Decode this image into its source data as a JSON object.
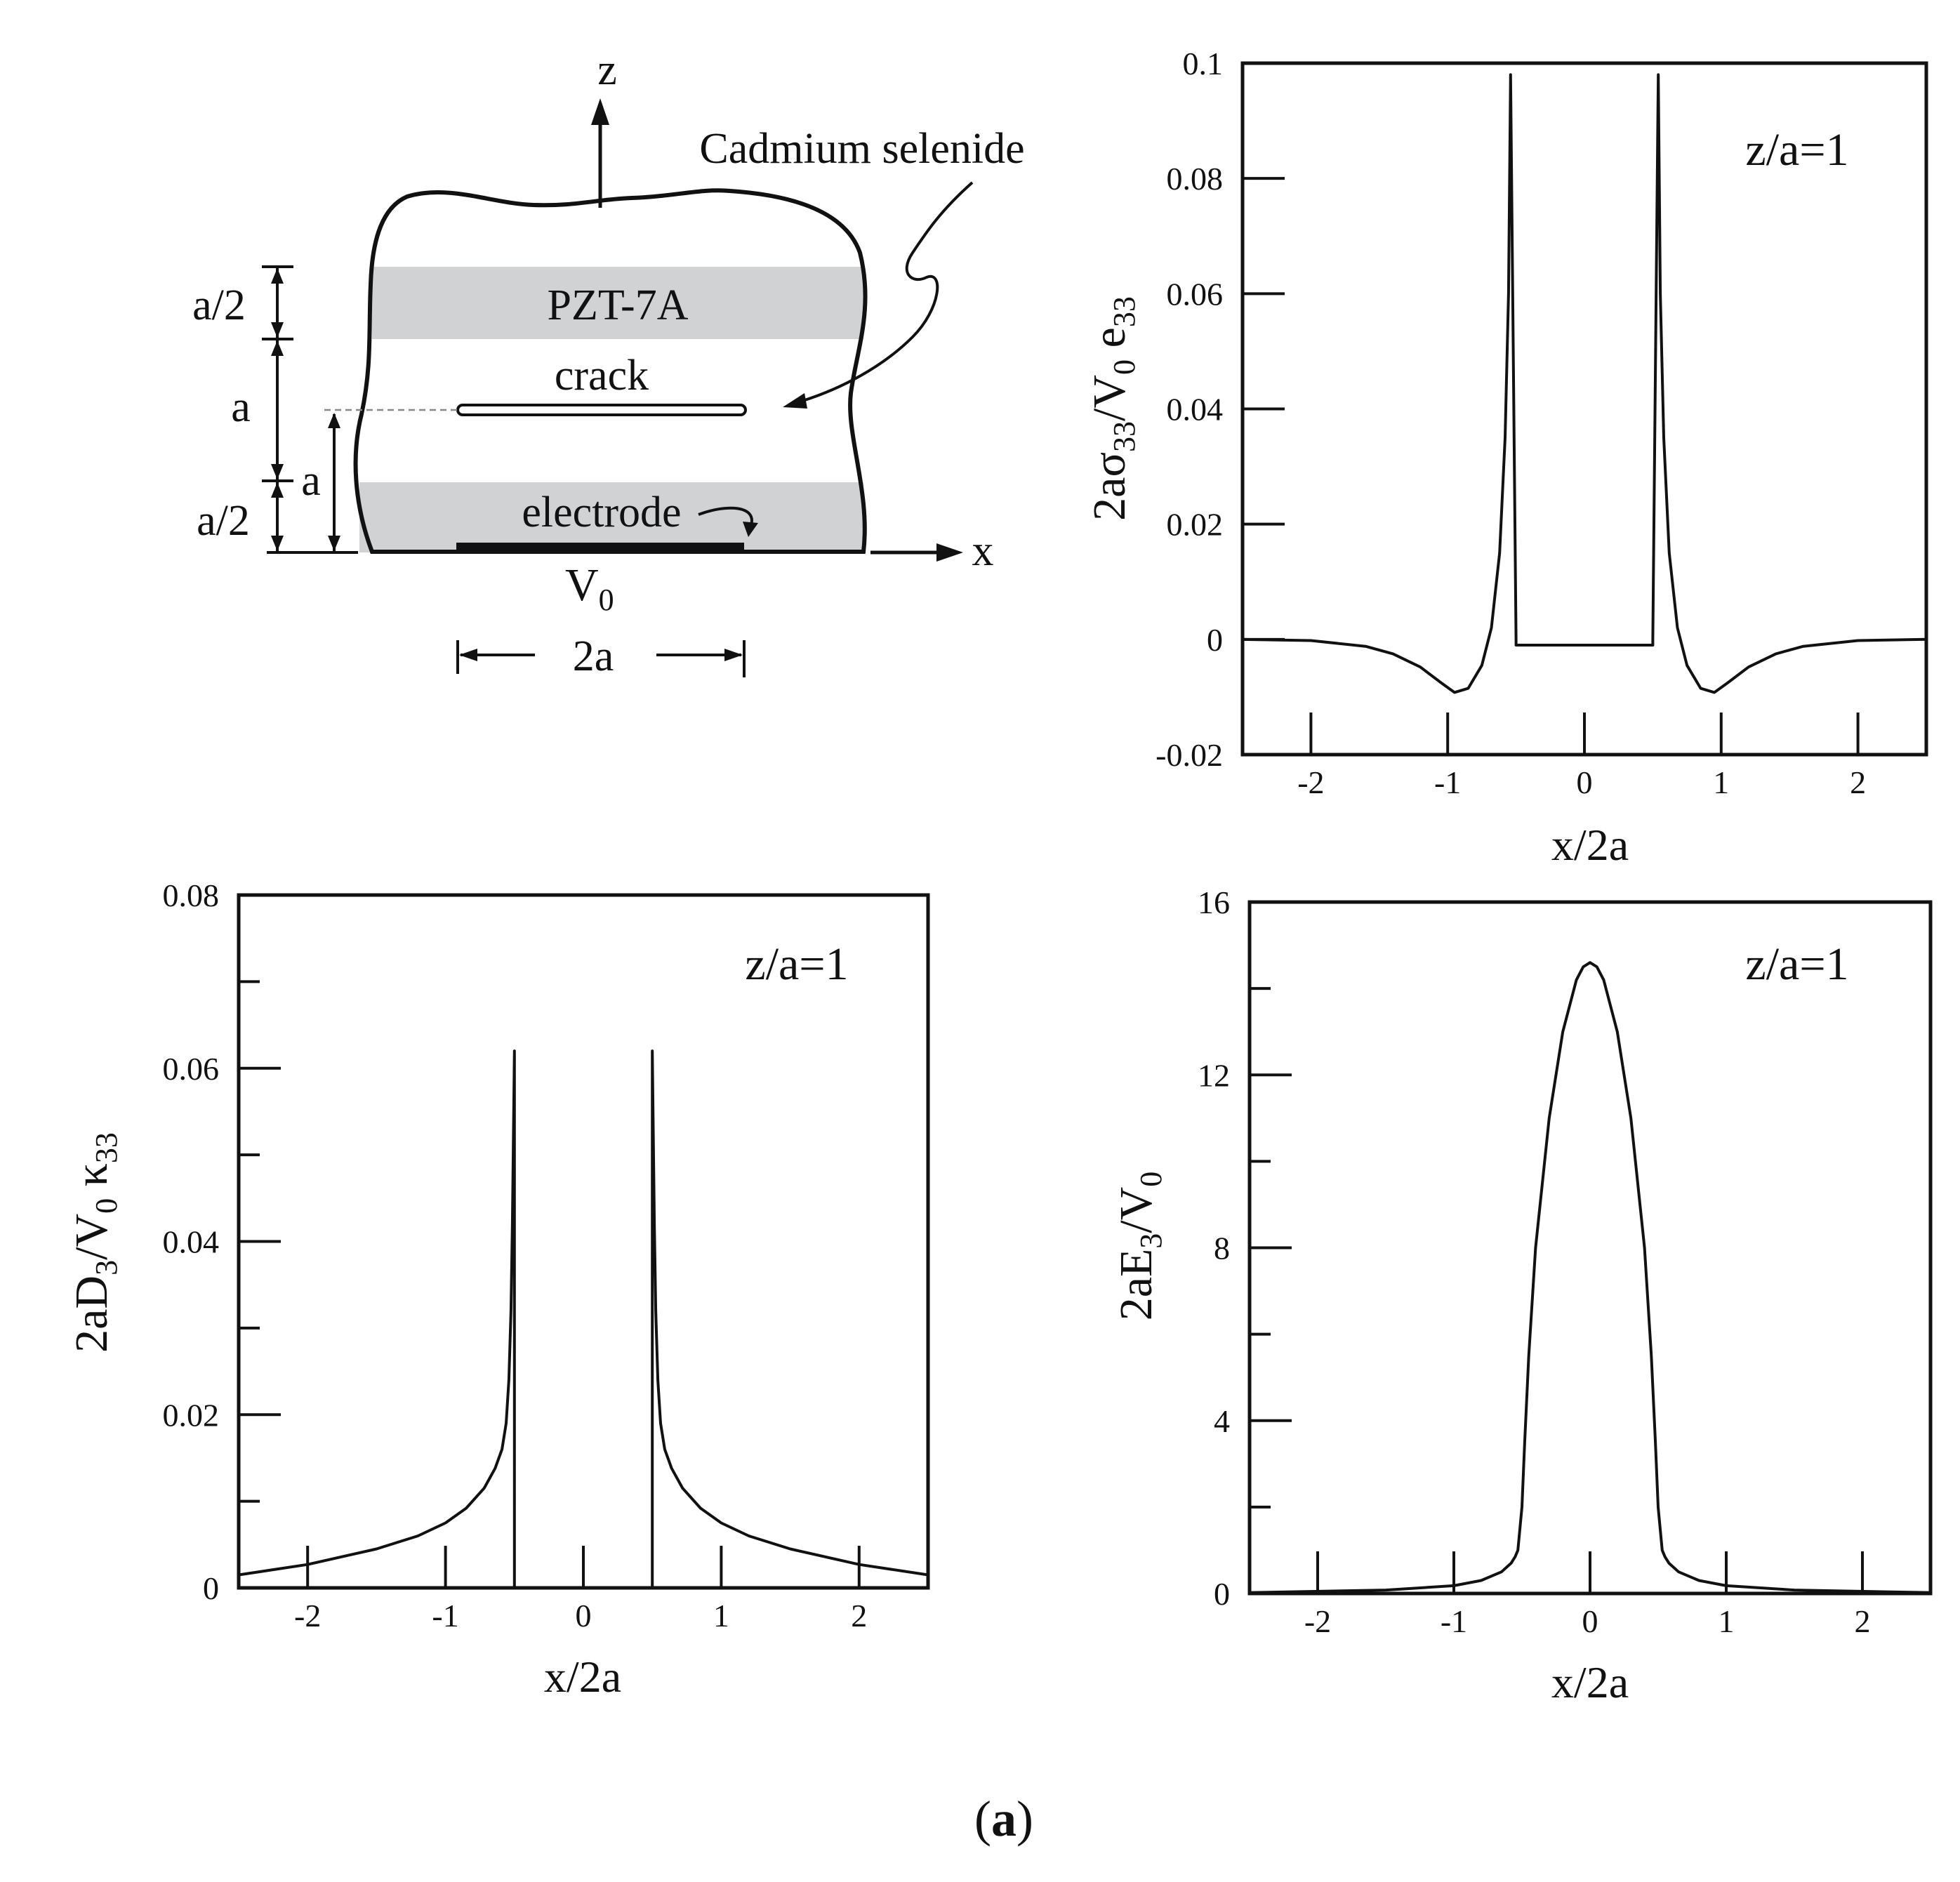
{
  "colors": {
    "ink": "#111111",
    "layer_fill": "#d1d2d4",
    "background": "#ffffff"
  },
  "diagram": {
    "axis_z": "z",
    "axis_x": "x",
    "material_label": "Cadmium selenide",
    "pzt_label": "PZT-7A",
    "crack_label": "crack",
    "electrode_label": "electrode",
    "voltage_main": "V",
    "voltage_sub": "0",
    "dim_half_top": "a/2",
    "dim_a_left": "a",
    "dim_half_bottom": "a/2",
    "dim_a_inner": "a",
    "dim_2a": "2a"
  },
  "caption": {
    "open": "(",
    "letter": "a",
    "close": ")"
  },
  "chart_data": [
    {
      "id": "sigma33",
      "type": "line",
      "ylabel": {
        "main": "2aσ",
        "sub1": "33",
        "mid": "/V",
        "sub2": "0",
        "tail": " e",
        "sub3": "33"
      },
      "xlabel": "x/2a",
      "annotation": "z/a=1",
      "xlim": [
        -2.5,
        2.5
      ],
      "ylim": [
        -0.02,
        0.1
      ],
      "xticks": [
        -2,
        -1,
        0,
        1,
        2
      ],
      "xtick_labels": [
        "-2",
        "-1",
        "0",
        "1",
        "2"
      ],
      "yticks": [
        -0.02,
        0,
        0.02,
        0.04,
        0.06,
        0.08,
        0.1
      ],
      "ytick_labels": [
        "-0.02",
        "0",
        "0.02",
        "0.04",
        "0.06",
        "0.08",
        "0.1"
      ],
      "x": [
        -2.5,
        -2.0,
        -1.6,
        -1.4,
        -1.2,
        -1.05,
        -0.95,
        -0.85,
        -0.75,
        -0.68,
        -0.62,
        -0.58,
        -0.555,
        -0.54,
        -0.5,
        -0.5,
        0.5,
        0.5,
        0.54,
        0.555,
        0.58,
        0.62,
        0.68,
        0.75,
        0.85,
        0.95,
        1.05,
        1.2,
        1.4,
        1.6,
        2.0,
        2.5
      ],
      "y": [
        0.0,
        -0.0002,
        -0.0012,
        -0.0025,
        -0.0048,
        -0.0075,
        -0.0092,
        -0.0085,
        -0.0045,
        0.002,
        0.015,
        0.035,
        0.06,
        0.098,
        0.0,
        -0.001,
        -0.001,
        0.0,
        0.098,
        0.06,
        0.035,
        0.015,
        0.002,
        -0.0045,
        -0.0085,
        -0.0092,
        -0.0075,
        -0.0048,
        -0.0025,
        -0.0012,
        -0.0002,
        0.0
      ]
    },
    {
      "id": "D3",
      "type": "line",
      "ylabel": {
        "main": "2aD",
        "sub1": "3",
        "mid": "/V",
        "sub2": "0",
        "tail": " κ",
        "sub3": "33"
      },
      "xlabel": "x/2a",
      "annotation": "z/a=1",
      "xlim": [
        -2.5,
        2.5
      ],
      "ylim": [
        0,
        0.08
      ],
      "xticks": [
        -2,
        -1,
        0,
        1,
        2
      ],
      "xtick_labels": [
        "-2",
        "-1",
        "0",
        "1",
        "2"
      ],
      "yticks": [
        0,
        0.02,
        0.04,
        0.06,
        0.08
      ],
      "ytick_labels": [
        "0",
        "0.02",
        "0.04",
        "0.06",
        "0.08"
      ],
      "x": [
        -2.5,
        -2.0,
        -1.5,
        -1.2,
        -1.0,
        -0.85,
        -0.72,
        -0.64,
        -0.59,
        -0.56,
        -0.54,
        -0.525,
        -0.515,
        -0.5,
        -0.5,
        0.5,
        0.5,
        0.515,
        0.525,
        0.54,
        0.56,
        0.59,
        0.64,
        0.72,
        0.85,
        1.0,
        1.2,
        1.5,
        2.0,
        2.5
      ],
      "y": [
        0.0015,
        0.0027,
        0.0045,
        0.006,
        0.0075,
        0.0092,
        0.0115,
        0.0138,
        0.016,
        0.019,
        0.024,
        0.032,
        0.042,
        0.062,
        0.0,
        0.0,
        0.062,
        0.042,
        0.032,
        0.024,
        0.019,
        0.016,
        0.0138,
        0.0115,
        0.0092,
        0.0075,
        0.006,
        0.0045,
        0.0027,
        0.0015
      ]
    },
    {
      "id": "E3",
      "type": "line",
      "ylabel": {
        "main": "2aE",
        "sub1": "3",
        "mid": "/V",
        "sub2": "0",
        "tail": "",
        "sub3": ""
      },
      "xlabel": "x/2a",
      "annotation": "z/a=1",
      "xlim": [
        -2.5,
        2.5
      ],
      "ylim": [
        0,
        16
      ],
      "xticks": [
        -2,
        -1,
        0,
        1,
        2
      ],
      "xtick_labels": [
        "-2",
        "-1",
        "0",
        "1",
        "2"
      ],
      "yticks": [
        0,
        4,
        8,
        12,
        16
      ],
      "ytick_labels": [
        "0",
        "4",
        "8",
        "12",
        "16"
      ],
      "x": [
        -2.5,
        -1.5,
        -1.0,
        -0.8,
        -0.65,
        -0.58,
        -0.55,
        -0.53,
        -0.5,
        -0.48,
        -0.45,
        -0.4,
        -0.3,
        -0.2,
        -0.1,
        -0.05,
        0.0,
        0.05,
        0.1,
        0.2,
        0.3,
        0.4,
        0.45,
        0.48,
        0.5,
        0.53,
        0.55,
        0.58,
        0.65,
        0.8,
        1.0,
        1.5,
        2.5
      ],
      "y": [
        0.02,
        0.08,
        0.18,
        0.3,
        0.5,
        0.7,
        0.85,
        1.0,
        2.0,
        3.5,
        5.5,
        8.0,
        11.0,
        13.0,
        14.2,
        14.5,
        14.6,
        14.5,
        14.2,
        13.0,
        11.0,
        8.0,
        5.5,
        3.5,
        2.0,
        1.0,
        0.85,
        0.7,
        0.5,
        0.3,
        0.18,
        0.08,
        0.02
      ]
    }
  ]
}
